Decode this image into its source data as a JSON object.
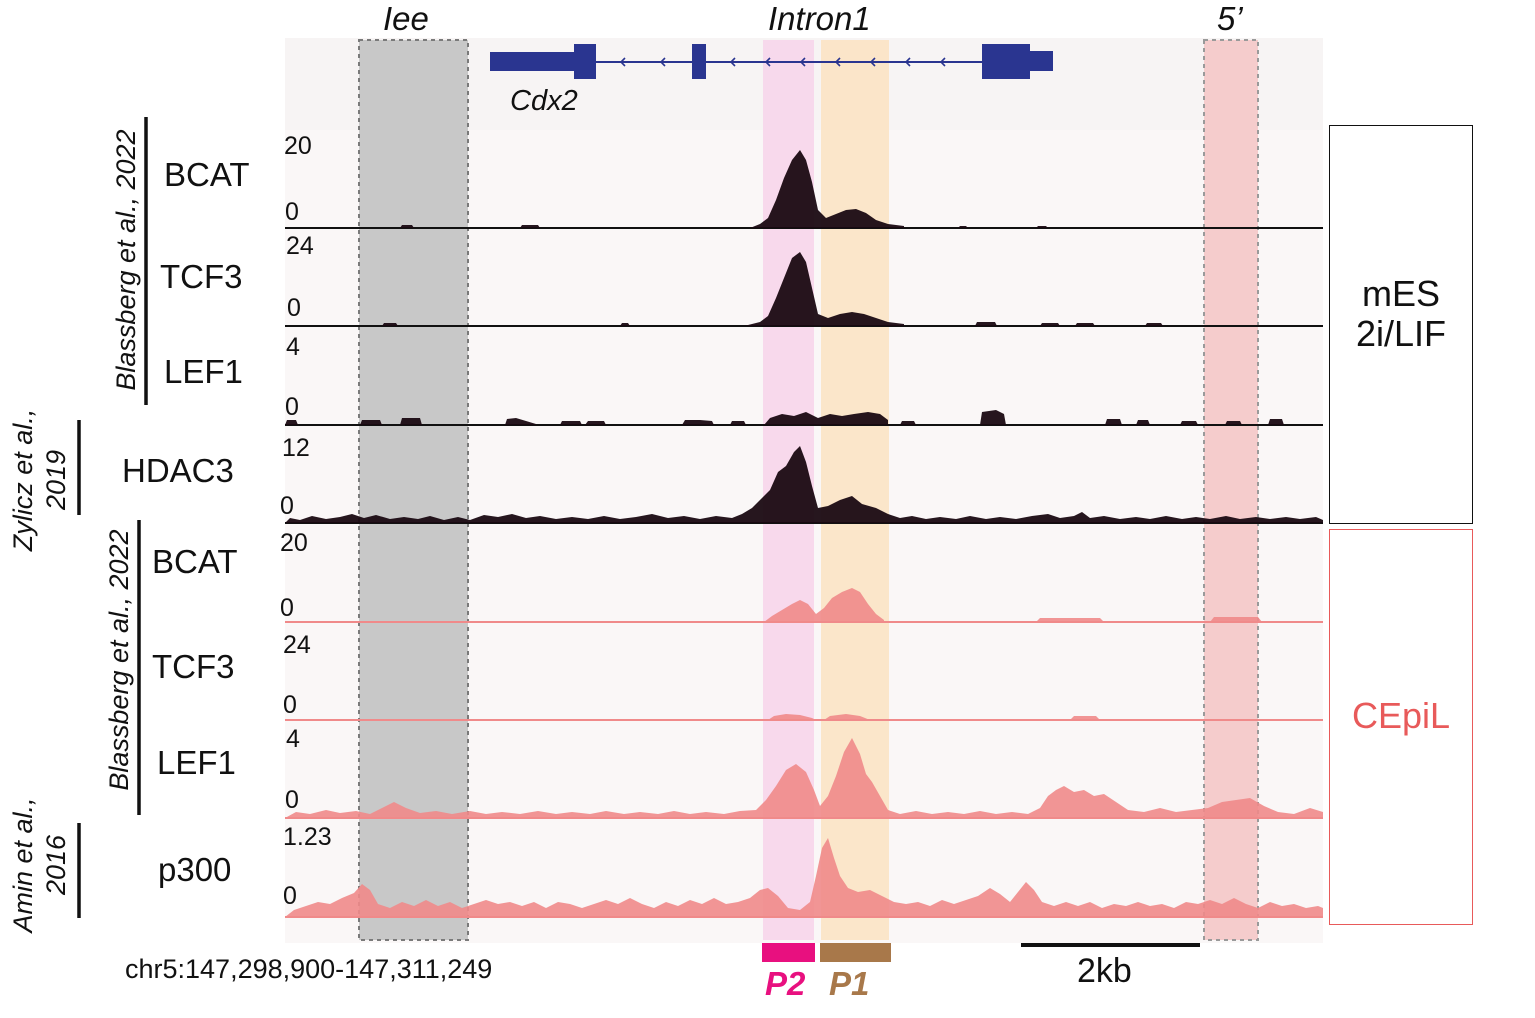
{
  "regions": {
    "iee": "Iee",
    "intron1": "Intron1",
    "five_prime": "5’"
  },
  "gene": {
    "name": "Cdx2",
    "color": "#2a3590"
  },
  "coordinates": "chr5:147,298,900-147,311,249",
  "scalebar": "2kb",
  "peaks": [
    {
      "label": "P2",
      "color": "#e8107f"
    },
    {
      "label": "P1",
      "color": "#a8784a"
    }
  ],
  "conditions": [
    {
      "label": "mES\n2i/LIF",
      "line1": "mES",
      "line2": "2i/LIF",
      "color": "#111111"
    },
    {
      "label": "CEpiL",
      "color": "#e85a5a"
    }
  ],
  "citations": [
    {
      "text": "Blassberg et al., 2022"
    },
    {
      "text": "Zylicz et al.,",
      "text2": "2019"
    },
    {
      "text": "Blassberg et al., 2022"
    },
    {
      "text": "Amin et al.,",
      "text2": "2016"
    }
  ],
  "tracks": [
    {
      "name": "BCAT",
      "max": "20",
      "min": "0",
      "group": "mES"
    },
    {
      "name": "TCF3",
      "max": "24",
      "min": "0",
      "group": "mES"
    },
    {
      "name": "LEF1",
      "max": "4",
      "min": "0",
      "group": "mES"
    },
    {
      "name": "HDAC3",
      "max": "12",
      "min": "0",
      "group": "mES"
    },
    {
      "name": "BCAT",
      "max": "20",
      "min": "0",
      "group": "CEpiL"
    },
    {
      "name": "TCF3",
      "max": "24",
      "min": "0",
      "group": "CEpiL"
    },
    {
      "name": "LEF1",
      "max": "4",
      "min": "0",
      "group": "CEpiL"
    },
    {
      "name": "p300",
      "max": "1.23",
      "min": "0",
      "group": "CEpiL"
    }
  ],
  "colors": {
    "mES_signal": "#1a0a12",
    "CEpiL_signal": "#f08a8a",
    "iee_shade": "#b8b8b8",
    "p2_shade": "#f6cfe6",
    "p1_shade": "#fbe0bf",
    "five_shade": "#f6c3c3"
  }
}
